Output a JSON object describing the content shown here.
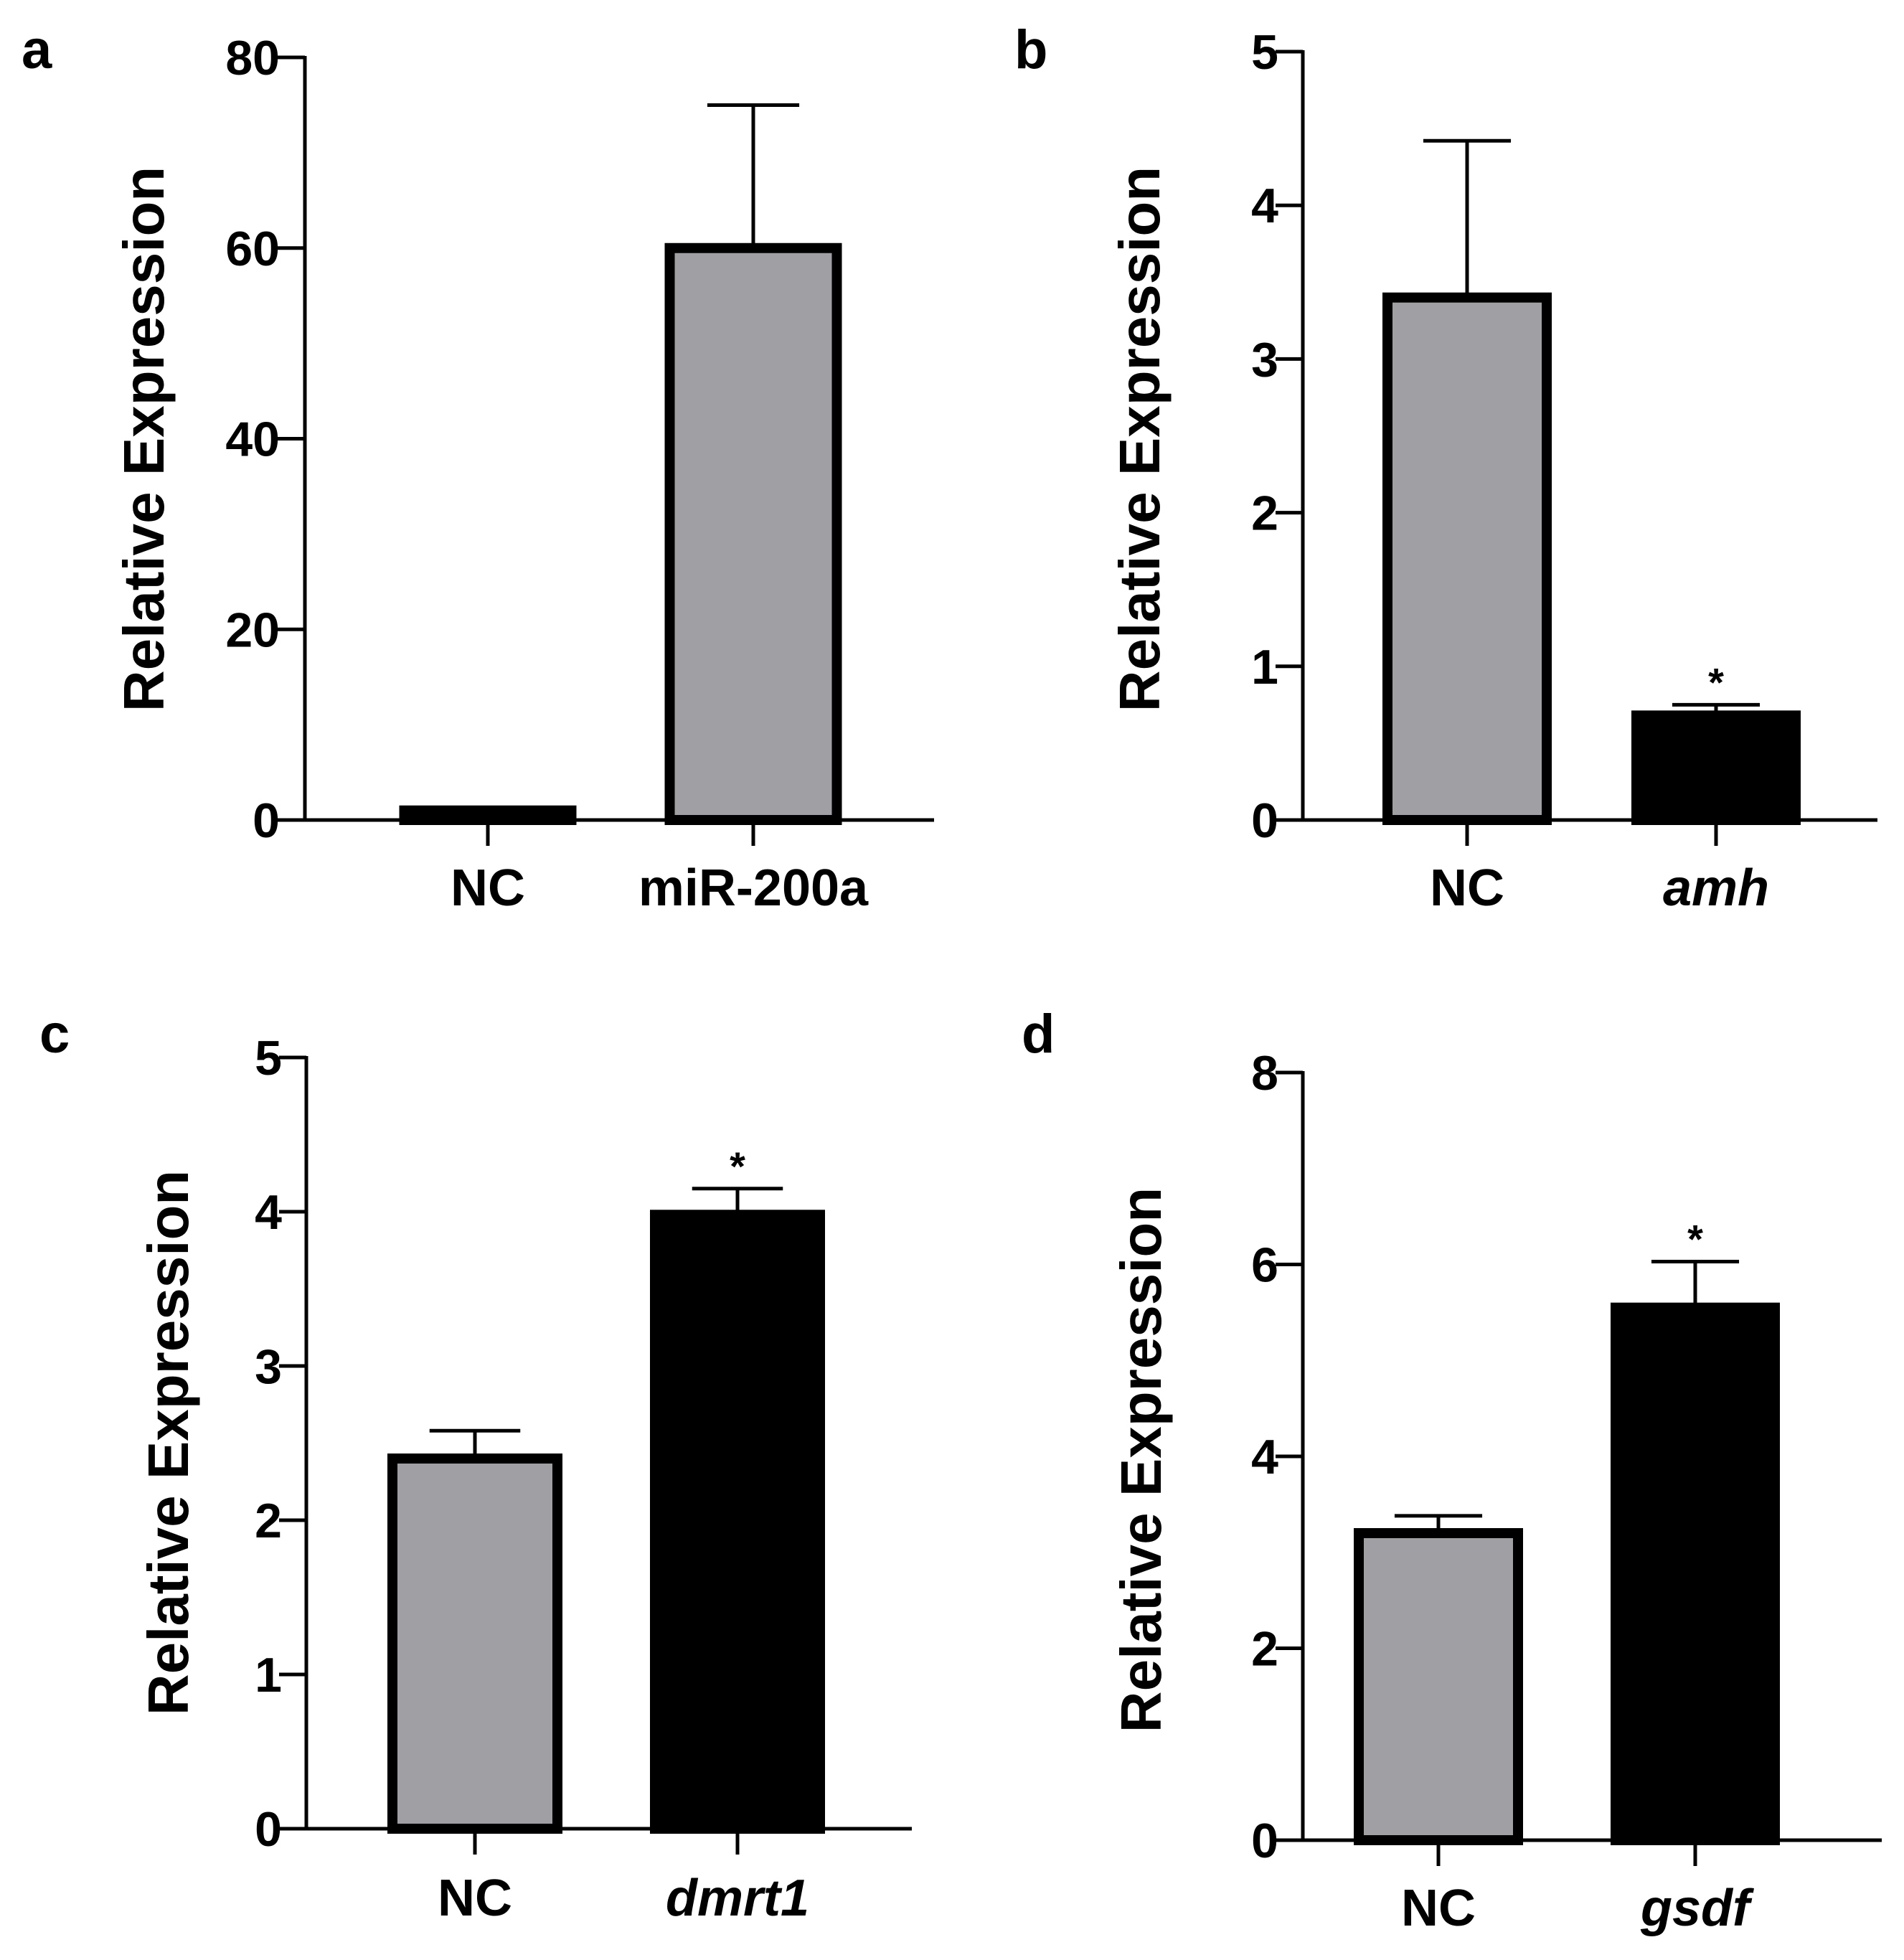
{
  "figure": {
    "description_panels": [
      "a",
      "b",
      "c",
      "d"
    ]
  },
  "chart_data": [
    {
      "panel": "a",
      "type": "bar",
      "categories": [
        "NC",
        "miR-200a"
      ],
      "category_italic": [
        false,
        false
      ],
      "values": [
        1,
        60
      ],
      "errors": [
        0,
        15
      ],
      "significance": [
        "",
        ""
      ],
      "bar_colors": [
        "#a0a0a4",
        "#a0a0a4"
      ],
      "ylabel": "Relative Expression",
      "xlabel": "",
      "ylim": [
        0,
        80
      ],
      "yticks": [
        0,
        20,
        40,
        60,
        80
      ]
    },
    {
      "panel": "b",
      "type": "bar",
      "categories": [
        "NC",
        "amh"
      ],
      "category_italic": [
        false,
        true
      ],
      "values": [
        3.4,
        0.68
      ],
      "errors": [
        1.02,
        0.07
      ],
      "significance": [
        "",
        "*"
      ],
      "bar_colors": [
        "#a0a0a4",
        "#000000"
      ],
      "ylabel": "Relative Expression",
      "xlabel": "",
      "ylim": [
        0,
        5
      ],
      "yticks": [
        0,
        1,
        2,
        3,
        4,
        5
      ]
    },
    {
      "panel": "c",
      "type": "bar",
      "categories": [
        "NC",
        "dmrt1"
      ],
      "category_italic": [
        false,
        true
      ],
      "values": [
        2.4,
        3.98
      ],
      "errors": [
        0.18,
        0.17
      ],
      "significance": [
        "",
        "*"
      ],
      "bar_colors": [
        "#a0a0a4",
        "#000000"
      ],
      "ylabel": "Relative Expression",
      "xlabel": "",
      "ylim": [
        0,
        5
      ],
      "yticks": [
        0,
        1,
        2,
        3,
        4,
        5
      ]
    },
    {
      "panel": "d",
      "type": "bar",
      "categories": [
        "NC",
        "gsdf"
      ],
      "category_italic": [
        false,
        true
      ],
      "values": [
        3.2,
        5.55
      ],
      "errors": [
        0.18,
        0.48
      ],
      "significance": [
        "",
        "*"
      ],
      "bar_colors": [
        "#a0a0a4",
        "#000000"
      ],
      "ylabel": "Relative Expression",
      "xlabel": "",
      "ylim": [
        0,
        8
      ],
      "yticks": [
        0,
        2,
        4,
        6,
        8
      ]
    }
  ]
}
